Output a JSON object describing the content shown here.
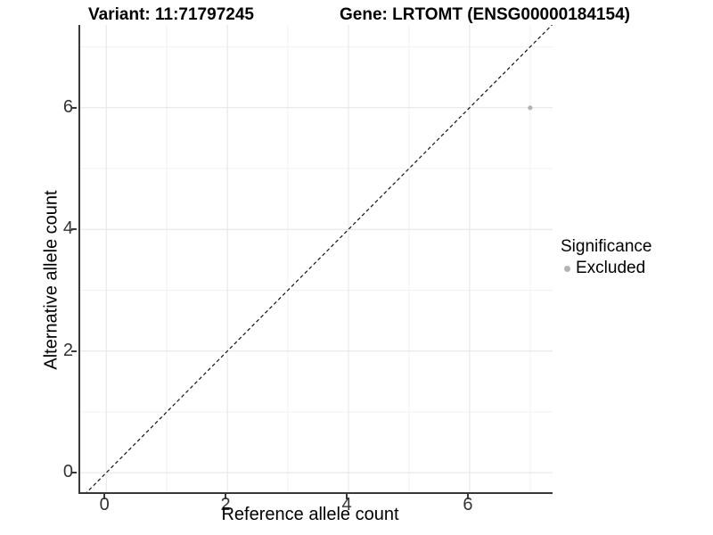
{
  "chart_data": {
    "type": "scatter",
    "titles": {
      "left": "Variant: 11:71797245",
      "right": "Gene: LRTOMT (ENSG00000184154)"
    },
    "xlabel": "Reference allele count",
    "ylabel": "Alternative allele count",
    "x_major_ticks": [
      0,
      2,
      4,
      6
    ],
    "y_major_ticks": [
      0,
      2,
      4,
      6
    ],
    "x_minor_gridlines": [
      1,
      3,
      5,
      7
    ],
    "y_minor_gridlines": [
      1,
      3,
      5,
      7
    ],
    "xlim": [
      -0.43,
      7.37
    ],
    "ylim": [
      -0.32,
      7.36
    ],
    "grid": true,
    "points": [
      {
        "x": 7,
        "y": 6,
        "significance": "Excluded"
      }
    ],
    "identity_line": {
      "slope": 1,
      "intercept": 0,
      "style": "dashed"
    },
    "legend": {
      "title": "Significance",
      "position": "right",
      "items": [
        {
          "label": "Excluded",
          "color": "#b3b3b3"
        }
      ]
    },
    "colors": {
      "point": "#b3b3b3",
      "grid_major": "#e4e4e4",
      "grid_minor": "#f1f1f1",
      "axis_line": "#383838",
      "dashed_line": "#111111",
      "tick_text": "#333333",
      "background": "#ffffff"
    }
  }
}
